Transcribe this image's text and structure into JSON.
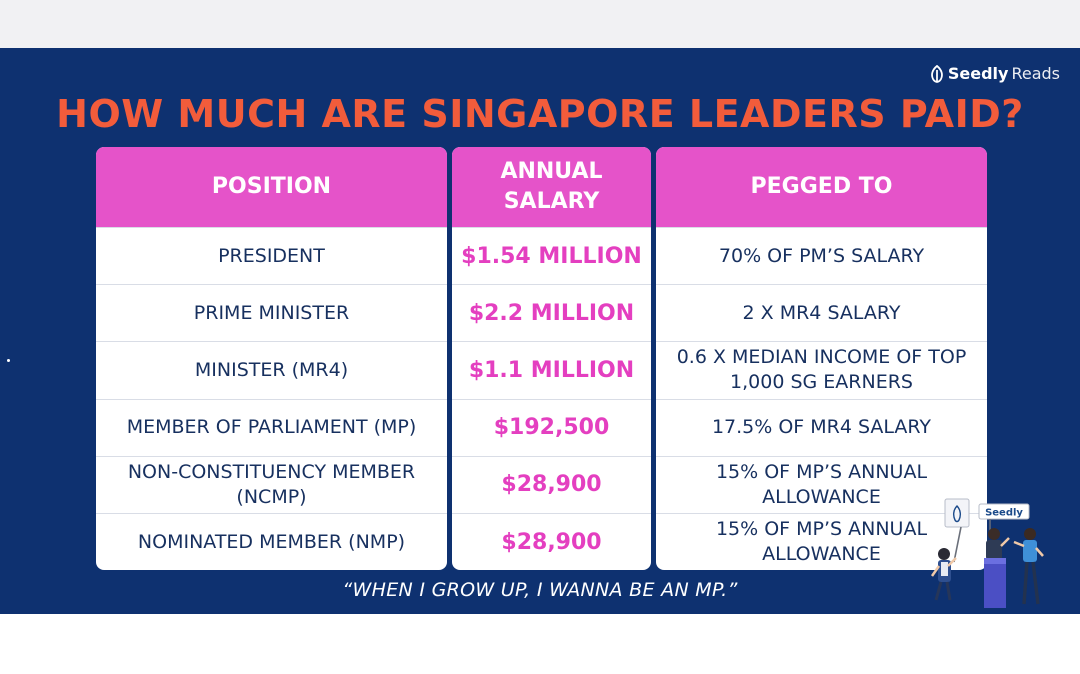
{
  "brand": {
    "bold": "Seedly",
    "light": " Reads",
    "icon": "seedly-sprout-icon"
  },
  "title": "HOW MUCH ARE SINGAPORE LEADERS PAID?",
  "table": {
    "headers": [
      "POSITION",
      "ANNUAL SALARY",
      "PEGGED TO"
    ],
    "rows": [
      {
        "position": "PRESIDENT",
        "salary": "$1.54 MILLION",
        "pegged": "70% OF PM’S SALARY"
      },
      {
        "position": "PRIME MINISTER",
        "salary": "$2.2 MILLION",
        "pegged": "2 X MR4 SALARY"
      },
      {
        "position": "MINISTER (MR4)",
        "salary": "$1.1 MILLION",
        "pegged": "0.6 X MEDIAN INCOME OF TOP 1,000 SG EARNERS"
      },
      {
        "position": "MEMBER OF PARLIAMENT (MP)",
        "salary": "$192,500",
        "pegged": "17.5% OF MR4 SALARY"
      },
      {
        "position": "NON-CONSTITUENCY MEMBER (NCMP)",
        "salary": "$28,900",
        "pegged": "15% OF MP’S ANNUAL ALLOWANCE"
      },
      {
        "position": "NOMINATED MEMBER (NMP)",
        "salary": "$28,900",
        "pegged": "15% OF MP’S ANNUAL ALLOWANCE"
      }
    ]
  },
  "quote": "“WHEN I GROW UP, I WANNA BE AN MP.”",
  "illustration": {
    "sign_text": "Seedly"
  },
  "colors": {
    "background": "#0e3170",
    "title": "#f25c3b",
    "header": "#e553c9",
    "salary": "#e43fc0",
    "body_text": "#17305f"
  }
}
